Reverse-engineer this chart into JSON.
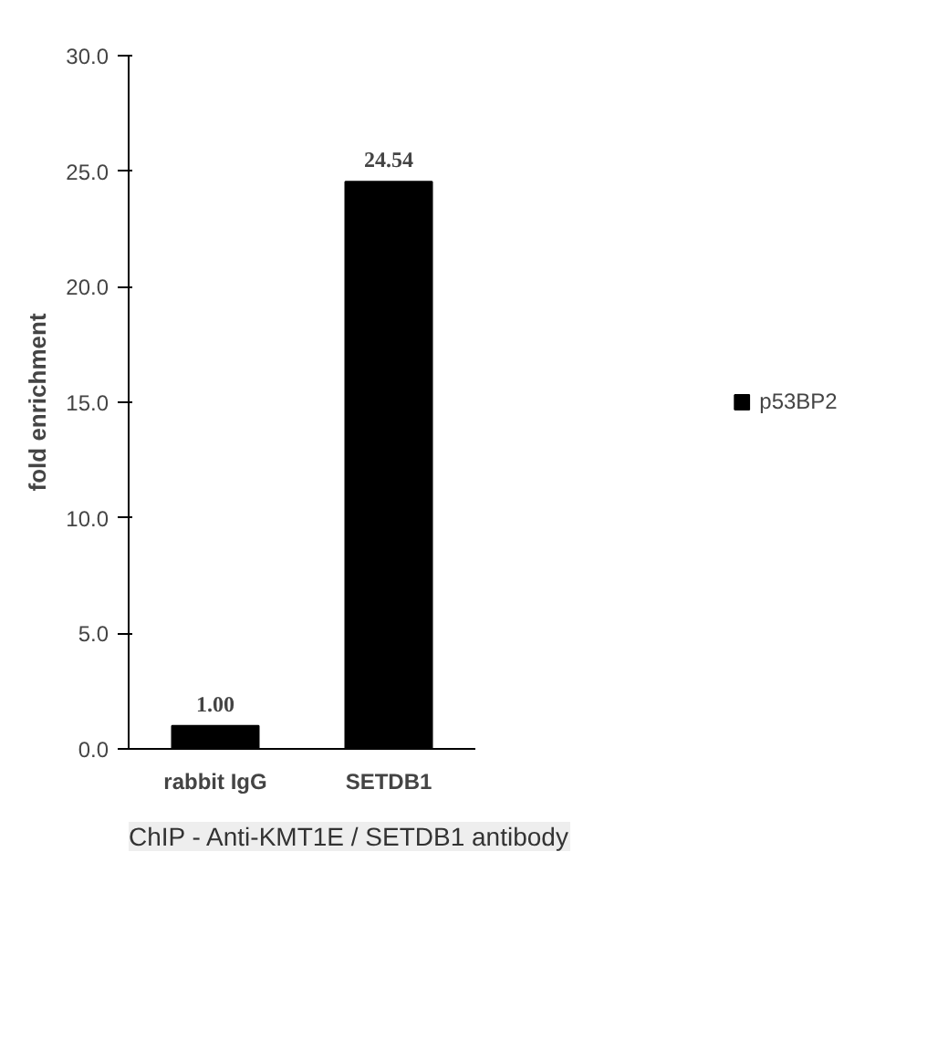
{
  "chart_data": {
    "type": "bar",
    "categories": [
      "rabbit IgG",
      "SETDB1"
    ],
    "series": [
      {
        "name": "p53BP2",
        "color": "#000000",
        "values": [
          1.0,
          24.54
        ]
      }
    ],
    "value_labels": [
      "1.00",
      "24.54"
    ],
    "ylabel": "fold enrichment",
    "ylim": [
      0,
      30
    ],
    "yticks": [
      {
        "value": 0,
        "label": "0.0"
      },
      {
        "value": 5,
        "label": "5.0"
      },
      {
        "value": 10,
        "label": "10.0"
      },
      {
        "value": 15,
        "label": "15.0"
      },
      {
        "value": 20,
        "label": "20.0"
      },
      {
        "value": 25,
        "label": "25.0"
      },
      {
        "value": 30,
        "label": "30.0"
      }
    ],
    "grid": false,
    "legend": "right",
    "annotations": [
      "ChIP - Anti-KMT1E / SETDB1 antibody"
    ]
  }
}
